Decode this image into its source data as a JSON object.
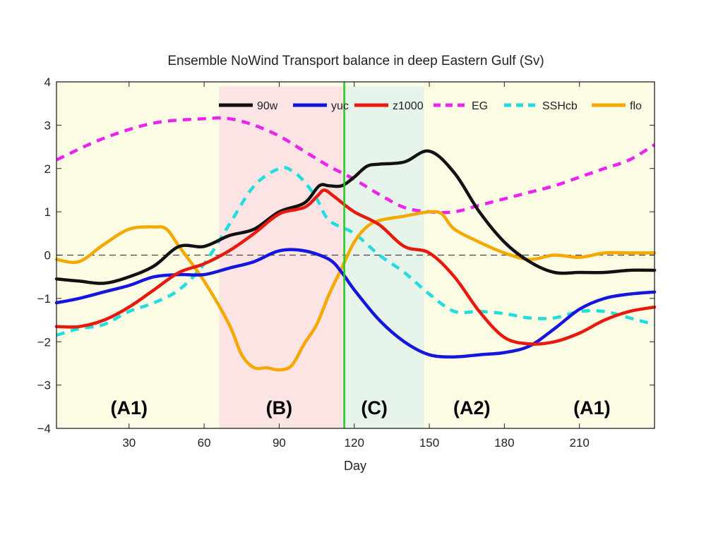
{
  "chart_data": {
    "type": "line",
    "title": "Ensemble NoWind Transport balance in deep Eastern Gulf (Sv)",
    "xlabel": "Day",
    "ylabel": "",
    "xlim": [
      1,
      240
    ],
    "ylim": [
      -4,
      4
    ],
    "xticks": [
      30,
      60,
      90,
      120,
      150,
      180,
      210
    ],
    "yticks": [
      -4,
      -3,
      -2,
      -1,
      0,
      1,
      2,
      3,
      4
    ],
    "zero_line": true,
    "legend_position": "top-right",
    "shaded_regions": [
      {
        "label": "(A1)",
        "x": [
          1,
          66
        ],
        "color": "#fdfde6"
      },
      {
        "label": "(B)",
        "x": [
          66,
          116
        ],
        "color": "#fde4e4"
      },
      {
        "label": "(C)",
        "x": [
          116,
          148
        ],
        "color": "#e6f4ea"
      },
      {
        "label": "(A2)",
        "x": [
          148,
          240
        ],
        "color": "#fdfde6"
      }
    ],
    "region_labels": [
      {
        "text": "(A1)",
        "x": 30
      },
      {
        "text": "(B)",
        "x": 90
      },
      {
        "text": "(C)",
        "x": 128
      },
      {
        "text": "(A2)",
        "x": 167
      },
      {
        "text": "(A1)",
        "x": 215
      }
    ],
    "vertical_line": {
      "x": 116,
      "color": "#22cc22"
    },
    "series": [
      {
        "name": "90w",
        "color": "#111111",
        "dash": "solid",
        "x": [
          1,
          10,
          20,
          30,
          40,
          50,
          60,
          70,
          80,
          90,
          100,
          106,
          110,
          115,
          120,
          125,
          130,
          140,
          150,
          160,
          170,
          180,
          190,
          200,
          210,
          220,
          230,
          240
        ],
        "y": [
          -0.55,
          -0.6,
          -0.65,
          -0.5,
          -0.25,
          0.2,
          0.2,
          0.45,
          0.6,
          1.0,
          1.2,
          1.6,
          1.6,
          1.6,
          1.8,
          2.05,
          2.1,
          2.15,
          2.4,
          1.9,
          1.0,
          0.3,
          -0.15,
          -0.4,
          -0.4,
          -0.4,
          -0.35,
          -0.35
        ]
      },
      {
        "name": "yuc",
        "color": "#1515e0",
        "dash": "solid",
        "x": [
          1,
          10,
          20,
          30,
          40,
          50,
          60,
          70,
          80,
          90,
          100,
          110,
          115,
          120,
          130,
          140,
          150,
          160,
          170,
          180,
          190,
          200,
          210,
          220,
          230,
          240
        ],
        "y": [
          -1.1,
          -1.0,
          -0.85,
          -0.7,
          -0.5,
          -0.45,
          -0.45,
          -0.3,
          -0.15,
          0.1,
          0.1,
          -0.1,
          -0.4,
          -0.8,
          -1.5,
          -2.0,
          -2.3,
          -2.35,
          -2.3,
          -2.25,
          -2.1,
          -1.7,
          -1.25,
          -1.0,
          -0.9,
          -0.85
        ]
      },
      {
        "name": "z1000",
        "color": "#e81a10",
        "dash": "solid",
        "x": [
          1,
          10,
          20,
          30,
          40,
          50,
          60,
          70,
          80,
          90,
          100,
          105,
          108,
          112,
          120,
          130,
          140,
          150,
          160,
          170,
          180,
          190,
          200,
          210,
          220,
          230,
          240
        ],
        "y": [
          -1.65,
          -1.65,
          -1.5,
          -1.2,
          -0.8,
          -0.4,
          -0.2,
          0.1,
          0.5,
          0.95,
          1.1,
          1.35,
          1.5,
          1.35,
          1.0,
          0.7,
          0.2,
          0.05,
          -0.5,
          -1.3,
          -1.9,
          -2.05,
          -2.0,
          -1.8,
          -1.5,
          -1.3,
          -1.2
        ]
      },
      {
        "name": "EG",
        "color": "#ee22ee",
        "dash": "dashed",
        "x": [
          1,
          20,
          40,
          60,
          70,
          80,
          90,
          100,
          110,
          120,
          130,
          140,
          150,
          160,
          170,
          180,
          190,
          200,
          210,
          220,
          230,
          240
        ],
        "y": [
          2.2,
          2.7,
          3.05,
          3.15,
          3.15,
          3.0,
          2.75,
          2.4,
          2.05,
          1.75,
          1.4,
          1.1,
          1.0,
          1.0,
          1.15,
          1.3,
          1.45,
          1.6,
          1.8,
          2.0,
          2.2,
          2.55
        ]
      },
      {
        "name": "SSHcb",
        "color": "#22dddd",
        "dash": "dashed",
        "x": [
          1,
          10,
          20,
          30,
          40,
          50,
          60,
          70,
          80,
          90,
          95,
          100,
          105,
          110,
          120,
          130,
          140,
          150,
          160,
          170,
          180,
          190,
          200,
          210,
          220,
          230,
          240
        ],
        "y": [
          -1.85,
          -1.7,
          -1.6,
          -1.3,
          -1.1,
          -0.8,
          -0.2,
          0.7,
          1.6,
          2.0,
          1.95,
          1.7,
          1.3,
          0.8,
          0.5,
          0.0,
          -0.4,
          -0.9,
          -1.3,
          -1.3,
          -1.35,
          -1.45,
          -1.45,
          -1.3,
          -1.3,
          -1.45,
          -1.6
        ]
      },
      {
        "name": "flo",
        "color": "#f5a800",
        "dash": "solid",
        "x": [
          1,
          10,
          20,
          30,
          40,
          45,
          50,
          60,
          70,
          75,
          80,
          85,
          90,
          95,
          100,
          105,
          110,
          115,
          120,
          125,
          130,
          140,
          150,
          155,
          160,
          170,
          180,
          190,
          200,
          210,
          220,
          230,
          240
        ],
        "y": [
          -0.1,
          -0.15,
          0.25,
          0.6,
          0.65,
          0.6,
          0.2,
          -0.6,
          -1.6,
          -2.3,
          -2.6,
          -2.6,
          -2.65,
          -2.55,
          -2.05,
          -1.6,
          -0.9,
          -0.3,
          0.3,
          0.65,
          0.8,
          0.9,
          1.0,
          0.95,
          0.6,
          0.3,
          0.05,
          -0.1,
          0.0,
          -0.05,
          0.05,
          0.05,
          0.05
        ]
      }
    ]
  }
}
